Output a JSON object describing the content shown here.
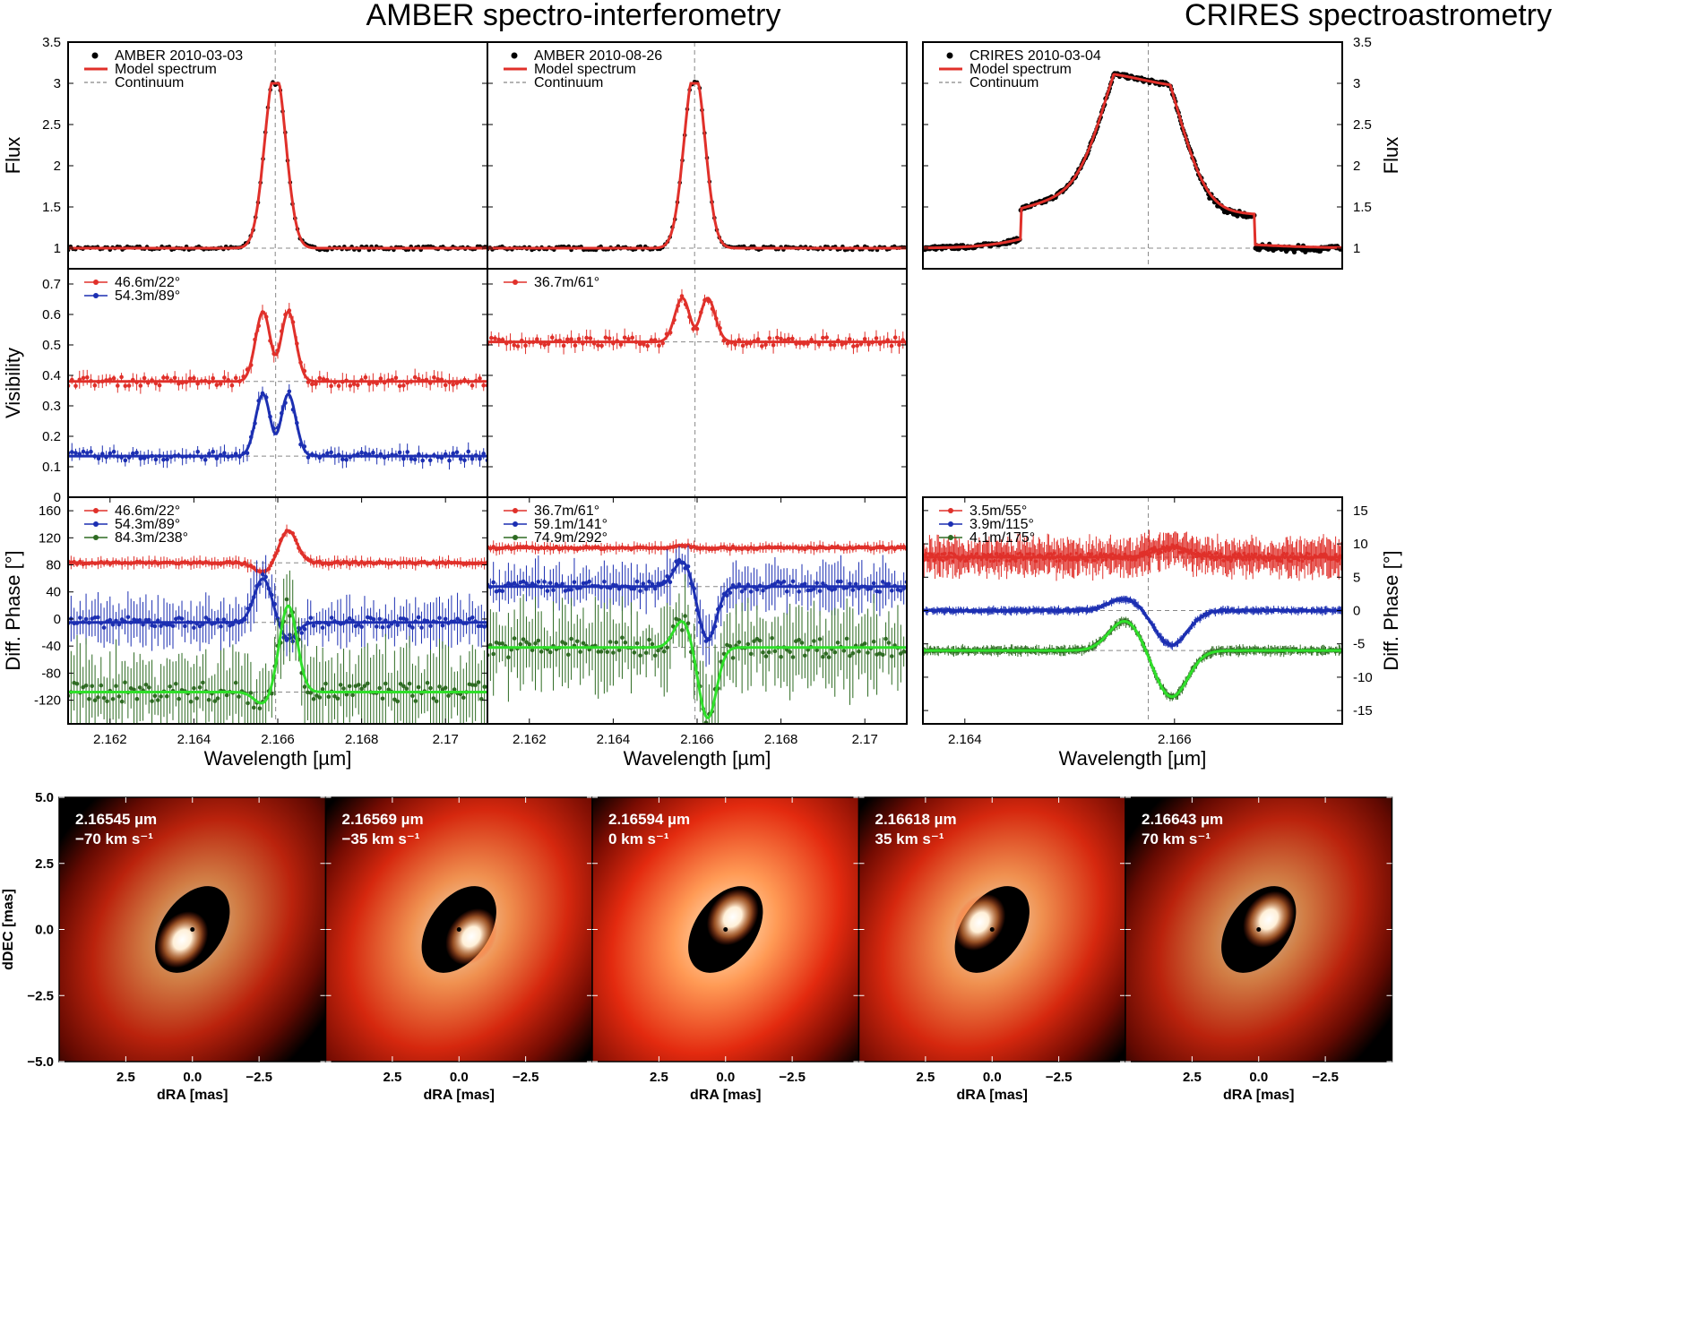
{
  "titles": {
    "amber": "AMBER spectro-interferometry",
    "crires": "CRIRES spectroastrometry"
  },
  "colors": {
    "red": "#e0302a",
    "blue": "#1c2fb2",
    "green": "#2fe02a",
    "darkgreen": "#2e6b22",
    "black": "#000000",
    "grey": "#888888"
  },
  "chart_data": [
    {
      "id": "amber1-flux",
      "type": "line",
      "ylabel": "Flux",
      "xlabel": "",
      "xlim": [
        2.161,
        2.171
      ],
      "ylim": [
        0.75,
        3.5
      ],
      "yticks": [
        1,
        1.5,
        2,
        2.5,
        3,
        3.5
      ],
      "ytick_labels": [
        "1",
        "1.5",
        "2",
        "2.5",
        "3",
        "3.5"
      ],
      "legend": [
        "AMBER 2010-03-03",
        "Model spectrum",
        "Continuum"
      ],
      "continuum": 1.0,
      "line_center": 2.16594,
      "series": [
        {
          "name": "Model spectrum",
          "kind": "gauss",
          "base": 1.0,
          "amp": 2.0,
          "center": 2.16594,
          "width": 0.00025,
          "flat": true
        }
      ]
    },
    {
      "id": "amber2-flux",
      "type": "line",
      "xlabel": "",
      "xlim": [
        2.161,
        2.171
      ],
      "ylim": [
        0.75,
        3.5
      ],
      "legend": [
        "AMBER 2010-08-26",
        "Model spectrum",
        "Continuum"
      ],
      "continuum": 1.0,
      "line_center": 2.16594,
      "series": [
        {
          "name": "Model spectrum",
          "kind": "gauss",
          "base": 1.0,
          "amp": 2.0,
          "center": 2.16594,
          "width": 0.00025,
          "flat": true
        }
      ]
    },
    {
      "id": "crires-flux",
      "type": "line",
      "ylabel": "Flux",
      "xlim": [
        2.1636,
        2.1676
      ],
      "ylim": [
        0.75,
        3.5
      ],
      "yticks": [
        1,
        1.5,
        2,
        2.5,
        3,
        3.5
      ],
      "ytick_labels": [
        "1",
        "1.5",
        "2",
        "2.5",
        "3",
        "3.5"
      ],
      "legend": [
        "CRIRES 2010-03-04",
        "Model spectrum",
        "Continuum"
      ],
      "continuum": 1.0,
      "line_center": 2.16575,
      "series": [
        {
          "name": "Model spectrum",
          "kind": "broad",
          "base": 1.0,
          "amp": 1.85,
          "center": 2.16575,
          "width": 0.00034
        }
      ]
    },
    {
      "id": "amber1-vis",
      "type": "line",
      "ylabel": "Visibility",
      "xlim": [
        2.161,
        2.171
      ],
      "ylim": [
        0,
        0.75
      ],
      "yticks": [
        0,
        0.1,
        0.2,
        0.3,
        0.4,
        0.5,
        0.6,
        0.7
      ],
      "ytick_labels": [
        "0",
        "0.1",
        "0.2",
        "0.3",
        "0.4",
        "0.5",
        "0.6",
        "0.7"
      ],
      "legend": [
        "46.6m/22°",
        "54.3m/89°"
      ],
      "series": [
        {
          "name": "46.6m/22°",
          "color": "red",
          "base": 0.38,
          "peak": 0.27,
          "dip": 0.14
        },
        {
          "name": "54.3m/89°",
          "color": "blue",
          "base": 0.135,
          "peak": 0.24,
          "dip": 0.15
        }
      ]
    },
    {
      "id": "amber2-vis",
      "type": "line",
      "xlim": [
        2.161,
        2.171
      ],
      "ylim": [
        0,
        0.75
      ],
      "legend": [
        "36.7m/61°"
      ],
      "series": [
        {
          "name": "36.7m/61°",
          "color": "red",
          "base": 0.51,
          "peak": 0.17,
          "dip": 0.11
        }
      ]
    },
    {
      "id": "amber1-phase",
      "type": "line",
      "ylabel": "Diff. Phase [°]",
      "xlabel": "Wavelength [µm]",
      "xlim": [
        2.161,
        2.171
      ],
      "ylim": [
        -155,
        180
      ],
      "yticks": [
        -120,
        -80,
        -40,
        0,
        40,
        80,
        120,
        160
      ],
      "ytick_labels": [
        "-120",
        "-80",
        "-40",
        "0",
        "40",
        "80",
        "120",
        "160"
      ],
      "xticks": [
        2.162,
        2.164,
        2.166,
        2.168,
        2.17
      ],
      "xtick_labels": [
        "2.162",
        "2.164",
        "2.166",
        "2.168",
        "2.17"
      ],
      "legend": [
        "46.6m/22°",
        "54.3m/89°",
        "84.3m/238°"
      ],
      "series": [
        {
          "name": "46.6m/22°",
          "color": "red",
          "base": 83,
          "a1": -15,
          "a2": 48
        },
        {
          "name": "54.3m/89°",
          "color": "blue",
          "base": -5,
          "a1": 65,
          "a2": -25
        },
        {
          "name": "84.3m/238°",
          "color": "green",
          "base": -108,
          "a1": -18,
          "a2": 128
        }
      ]
    },
    {
      "id": "amber2-phase",
      "type": "line",
      "xlabel": "Wavelength [µm]",
      "xlim": [
        2.161,
        2.171
      ],
      "ylim": [
        -155,
        180
      ],
      "xticks": [
        2.162,
        2.164,
        2.166,
        2.168,
        2.17
      ],
      "xtick_labels": [
        "2.162",
        "2.164",
        "2.166",
        "2.168",
        "2.17"
      ],
      "legend": [
        "36.7m/61°",
        "59.1m/141°",
        "74.9m/292°"
      ],
      "series": [
        {
          "name": "36.7m/61°",
          "color": "red",
          "base": 105,
          "a1": 4,
          "a2": 0
        },
        {
          "name": "59.1m/141°",
          "color": "blue",
          "base": 48,
          "a1": 38,
          "a2": -78
        },
        {
          "name": "74.9m/292°",
          "color": "green",
          "base": -42,
          "a1": 40,
          "a2": -105
        }
      ]
    },
    {
      "id": "crires-phase",
      "type": "line",
      "ylabel": "Diff. Phase [°]",
      "xlabel": "Wavelength [µm]",
      "xlim": [
        2.1636,
        2.1676
      ],
      "ylim": [
        -17,
        17
      ],
      "yticks": [
        -15,
        -10,
        -5,
        0,
        5,
        10,
        15
      ],
      "ytick_labels": [
        "-15",
        "-10",
        "-5",
        "0",
        "5",
        "10",
        "15"
      ],
      "xticks": [
        2.164,
        2.166
      ],
      "xtick_labels": [
        "2.164",
        "2.166"
      ],
      "legend": [
        "3.5m/55°",
        "3.9m/115°",
        "4.1m/175°"
      ],
      "series": [
        {
          "name": "3.5m/55°",
          "color": "red",
          "base": 8,
          "a1": 0,
          "a2": 1.5
        },
        {
          "name": "3.9m/115°",
          "color": "blue",
          "base": 0,
          "a1": 1.8,
          "a2": -5.2
        },
        {
          "name": "4.1m/175°",
          "color": "green",
          "base": -6,
          "a1": 4.5,
          "a2": -7
        }
      ]
    },
    {
      "id": "model-images",
      "type": "heatmap",
      "xlabel": "dRA [mas]",
      "ylabel": "dDEC [mas]",
      "xlim": [
        5,
        -5
      ],
      "ylim": [
        -5,
        5
      ],
      "xticks": [
        2.5,
        0,
        -2.5
      ],
      "xtick_labels": [
        "2.5",
        "0.0",
        "−2.5"
      ],
      "yticks": [
        -5,
        -2.5,
        0,
        2.5,
        5
      ],
      "ytick_labels": [
        "−5.0",
        "−2.5",
        "0.0",
        "2.5",
        "5.0"
      ],
      "panels": [
        {
          "wavelength": "2.16545 µm",
          "velocity": "−70 km s⁻¹",
          "angle": -135,
          "bright": 0.55
        },
        {
          "wavelength": "2.16569 µm",
          "velocity": "−35 km s⁻¹",
          "angle": -30,
          "bright": 0.85
        },
        {
          "wavelength": "2.16594 µm",
          "velocity": "0 km s⁻¹",
          "angle": 60,
          "bright": 1.0
        },
        {
          "wavelength": "2.16618 µm",
          "velocity": "35 km s⁻¹",
          "angle": 150,
          "bright": 0.85
        },
        {
          "wavelength": "2.16643 µm",
          "velocity": "70 km s⁻¹",
          "angle": 45,
          "bright": 0.55
        }
      ]
    }
  ]
}
